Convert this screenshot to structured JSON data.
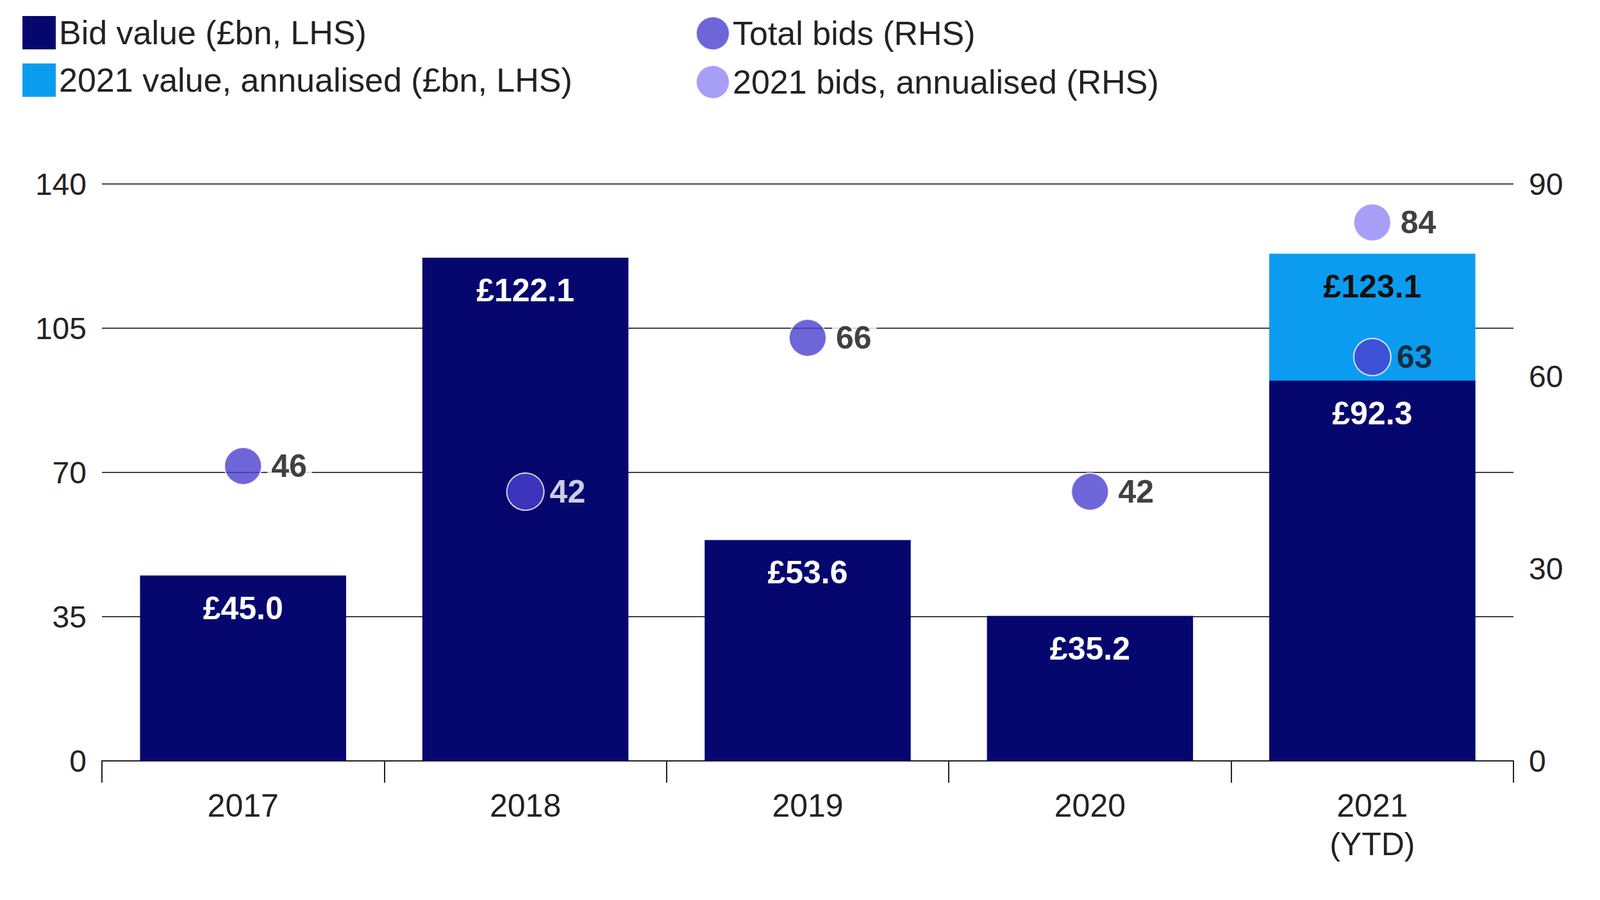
{
  "chart_data": {
    "type": "bar",
    "categories": [
      "2017",
      "2018",
      "2019",
      "2020",
      "2021\n(YTD)"
    ],
    "series": [
      {
        "name": "Bid value (£bn, LHS)",
        "type": "bar",
        "color": "#05076e",
        "values": [
          45.0,
          122.1,
          53.6,
          35.2,
          92.3
        ],
        "value_labels": [
          "£45.0",
          "£122.1",
          "£53.6",
          "£35.2",
          "£92.3"
        ]
      },
      {
        "name": "2021 value, annualised (£bn, LHS)",
        "type": "bar",
        "color": "#0b9cf0",
        "values": [
          null,
          null,
          null,
          null,
          123.1
        ],
        "value_labels": [
          null,
          null,
          null,
          null,
          "£123.1"
        ]
      },
      {
        "name": "Total bids (RHS)",
        "type": "scatter",
        "axis": "y2",
        "color": "#4a3fd0",
        "values": [
          46,
          42,
          66,
          42,
          63
        ]
      },
      {
        "name": "2021 bids, annualised (RHS)",
        "type": "scatter",
        "axis": "y2",
        "color": "#9186f5",
        "values": [
          null,
          null,
          null,
          null,
          84
        ]
      }
    ],
    "ylim": [
      0,
      140
    ],
    "yticks": [
      0,
      35,
      70,
      105,
      140
    ],
    "y2lim": [
      0,
      90
    ],
    "y2ticks": [
      0,
      30,
      60,
      90
    ],
    "grid": true,
    "legend": "top-left",
    "data_labels": true,
    "stacked": false
  }
}
